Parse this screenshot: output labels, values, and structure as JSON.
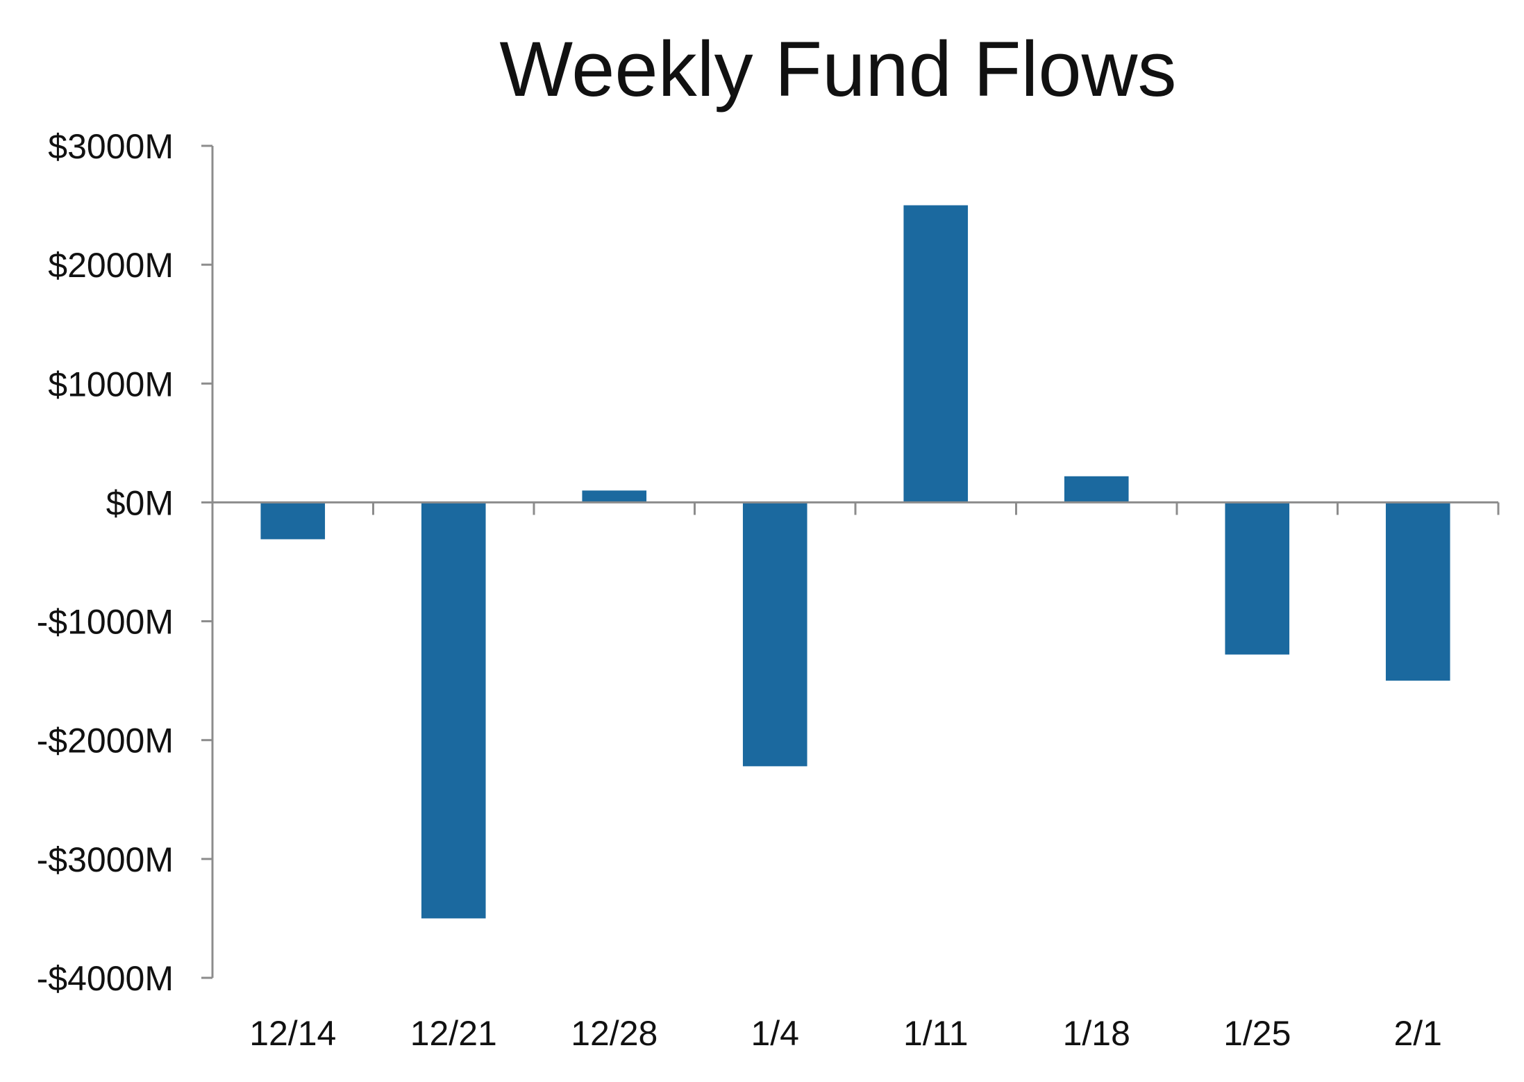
{
  "chart_data": {
    "type": "bar",
    "title": "Weekly Fund Flows",
    "xlabel": "",
    "ylabel": "",
    "categories": [
      "12/14",
      "12/21",
      "12/28",
      "1/4",
      "1/11",
      "1/18",
      "1/25",
      "2/1"
    ],
    "values": [
      -310,
      -3500,
      100,
      -2220,
      2500,
      220,
      -1280,
      -1500
    ],
    "ylim": [
      -4000,
      3000
    ],
    "yticks": [
      3000,
      2000,
      1000,
      0,
      -1000,
      -2000,
      -3000,
      -4000
    ],
    "ytick_labels": [
      "$3000M",
      "$2000M",
      "$1000M",
      "$0M",
      "-$1000M",
      "-$2000M",
      "-$3000M",
      "-$4000M"
    ],
    "bar_color": "#1b699f",
    "axis_color": "#8c8c8c",
    "grid": false,
    "legend": "none"
  }
}
